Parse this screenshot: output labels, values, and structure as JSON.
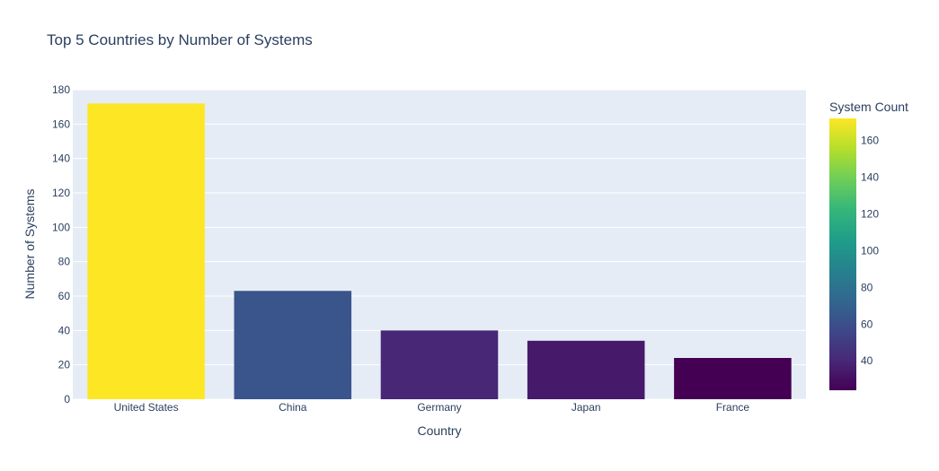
{
  "chart_data": {
    "type": "bar",
    "title": "Top 5 Countries by Number of Systems",
    "xlabel": "Country",
    "ylabel": "Number of Systems",
    "categories": [
      "United States",
      "China",
      "Germany",
      "Japan",
      "France"
    ],
    "values": [
      172,
      63,
      40,
      34,
      24
    ],
    "ylim": [
      0,
      180
    ],
    "yticks": [
      0,
      20,
      40,
      60,
      80,
      100,
      120,
      140,
      160,
      180
    ],
    "grid": true,
    "plot_background": "#e5ecf6",
    "colorbar": {
      "title": "System Count",
      "colorscale": "Viridis",
      "range": [
        24,
        172
      ],
      "ticks": [
        40,
        60,
        80,
        100,
        120,
        140,
        160
      ]
    }
  }
}
